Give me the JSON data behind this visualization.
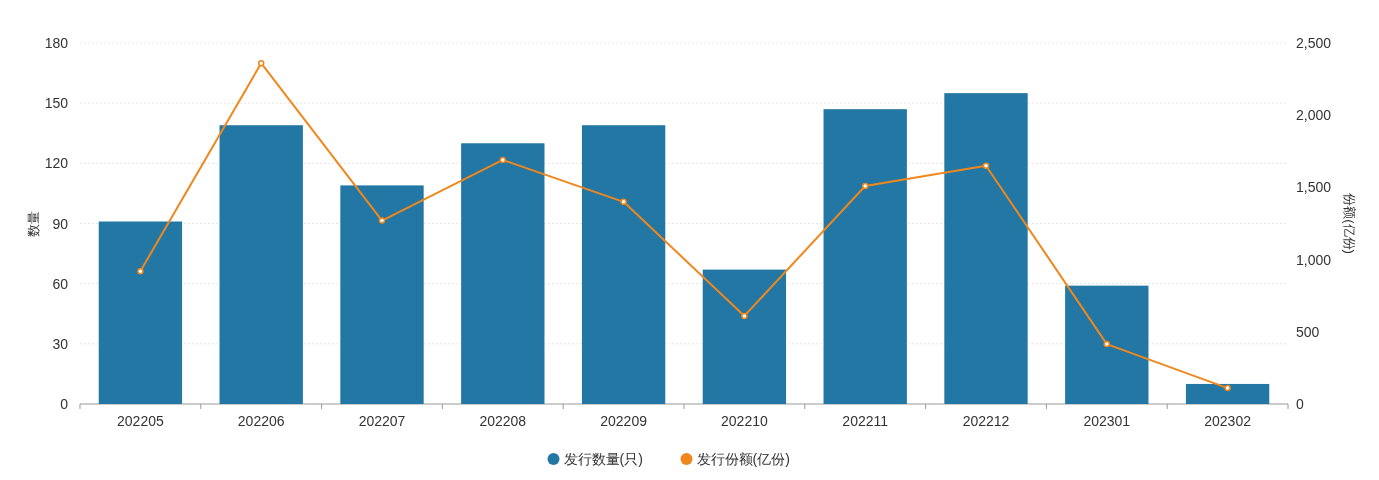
{
  "chart_data": {
    "type": "bar",
    "categories": [
      "202205",
      "202206",
      "202207",
      "202208",
      "202209",
      "202210",
      "202211",
      "202212",
      "202301",
      "202302"
    ],
    "series": [
      {
        "name": "发行数量(只)",
        "color": "#2277a4",
        "values": [
          91,
          139,
          109,
          130,
          139,
          67,
          147,
          155,
          59,
          10
        ]
      },
      {
        "name": "发行份额(亿份)",
        "type": "line",
        "axis": "y2",
        "color": "#f0871c",
        "values": [
          920,
          2360,
          1270,
          1690,
          1400,
          610,
          1510,
          1650,
          415,
          110
        ]
      }
    ],
    "ylabel": "数量",
    "y2label": "份额(亿份)",
    "ylim": [
      0,
      180
    ],
    "yticks": [
      0,
      30,
      60,
      90,
      120,
      150,
      180
    ],
    "y2lim": [
      0,
      2500
    ],
    "y2ticks": [
      0,
      500,
      {
        "value": 1000,
        "label": "1,000"
      },
      {
        "value": 1500,
        "label": "1,500"
      },
      {
        "value": 2000,
        "label": "2,000"
      },
      {
        "value": 2500,
        "label": "2,500"
      }
    ],
    "grid": "y",
    "legend": "bottom",
    "marker": "circle"
  }
}
